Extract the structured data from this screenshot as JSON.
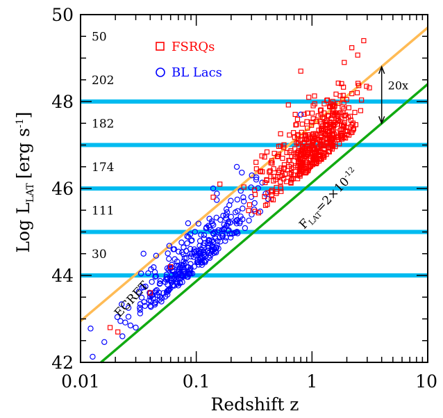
{
  "chart_data": {
    "type": "scatter",
    "x_scale": "log",
    "xlim": [
      0.01,
      10
    ],
    "ylim": [
      42,
      50
    ],
    "xlabel": "Redshift z",
    "ylabel_main": "Log L",
    "ylabel_sub": "LAT",
    "ylabel_unit": "[erg s",
    "ylabel_exp": "-1",
    "ylabel_close": "]",
    "x_ticks": [
      {
        "value": 0.01,
        "label": "0.01"
      },
      {
        "value": 0.1,
        "label": "0.1"
      },
      {
        "value": 1,
        "label": "1"
      },
      {
        "value": 10,
        "label": "10"
      }
    ],
    "y_ticks": [
      {
        "value": 42,
        "label": "42"
      },
      {
        "value": 44,
        "label": "44"
      },
      {
        "value": 46,
        "label": "46"
      },
      {
        "value": 48,
        "label": "48"
      },
      {
        "value": 50,
        "label": "50"
      }
    ],
    "bins": [
      {
        "y": 44,
        "count": "30"
      },
      {
        "y": 45,
        "count": "111"
      },
      {
        "y": 46,
        "count": "174"
      },
      {
        "y": 47,
        "count": "182"
      },
      {
        "y": 48,
        "count": "202"
      },
      {
        "y": 49,
        "count": "50"
      }
    ],
    "legend": [
      {
        "name": "FSRQs",
        "marker": "square",
        "color": "#ff0000"
      },
      {
        "name": "BL Lacs",
        "marker": "circle",
        "color": "#0000ff"
      }
    ],
    "lines": [
      {
        "name": "EGRET",
        "label": "EGRET",
        "color": "#ffbb55",
        "x": [
          0.01,
          10
        ],
        "y": [
          42.95,
          49.7
        ]
      },
      {
        "name": "lat-limit",
        "label_main": "F",
        "label_sub": "LAT",
        "label_eq": "=2×10",
        "label_exp": "-12",
        "color": "#11aa11",
        "x": [
          0.015,
          10
        ],
        "y": [
          42.0,
          48.4
        ]
      }
    ],
    "annotation": {
      "label": "20x",
      "x": 4,
      "y_low": 47.5,
      "y_high": 48.8
    },
    "colors": {
      "bin_line": "#00bbf0",
      "fsrq": "#ff0000",
      "bllac": "#0000ff"
    }
  }
}
